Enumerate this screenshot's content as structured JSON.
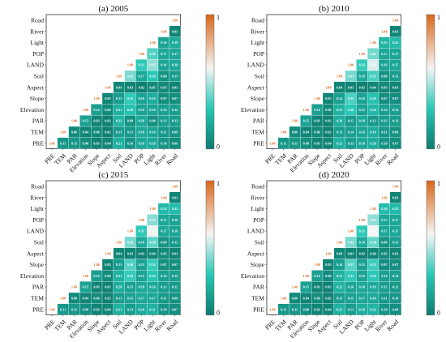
{
  "variables": [
    "PRE",
    "TEM",
    "PAR",
    "Elevation",
    "Slope",
    "Aspect",
    "Soil",
    "LAND",
    "POP",
    "Light",
    "River",
    "Road"
  ],
  "colorbar": {
    "max_label": "1",
    "min_label": "0"
  },
  "colors": {
    "low": "#0d7c6f",
    "mid": "#28c7b6",
    "pale": "#f5f5f5",
    "high": "#d9681a"
  },
  "chart_data": [
    {
      "type": "heatmap",
      "title": "(a) 2005",
      "diag_label": "1.00",
      "ylim": [
        0,
        1
      ],
      "values": [
        [],
        [
          0.11
        ],
        [
          0.11,
          0.06
        ],
        [
          0.08,
          0.04,
          0.15
        ],
        [
          0.03,
          0.06,
          0.03,
          0.14
        ],
        [
          0.04,
          0.02,
          0.02,
          0.06,
          0.03
        ],
        [
          0.21,
          0.13,
          0.22,
          0.21,
          0.13,
          0.04
        ],
        [
          0.1,
          0.11,
          0.09,
          0.28,
          0.31,
          0.03,
          0.42
        ],
        [
          0.18,
          0.18,
          0.18,
          0.16,
          0.16,
          0.02,
          0.17,
          0.31
        ],
        [
          0.18,
          0.16,
          0.08,
          0.16,
          0.19,
          0.05,
          0.3,
          0.45,
          0.36
        ],
        [
          0.1,
          0.11,
          0.13,
          0.14,
          0.07,
          0.05,
          0.09,
          0.16,
          0.17,
          0.16
        ],
        [
          0.06,
          0.09,
          0.13,
          0.14,
          0.07,
          0.03,
          0.13,
          0.18,
          0.17,
          0.19,
          0.03
        ]
      ]
    },
    {
      "type": "heatmap",
      "title": "(b) 2010",
      "diag_label": "1.00",
      "ylim": [
        0,
        1
      ],
      "values": [
        [],
        [
          0.11
        ],
        [
          0.11,
          0.06
        ],
        [
          0.08,
          0.04,
          0.15
        ],
        [
          0.03,
          0.06,
          0.03,
          0.14
        ],
        [
          0.04,
          0.02,
          0.02,
          0.06,
          0.03
        ],
        [
          0.21,
          0.13,
          0.2,
          0.21,
          0.14,
          0.04
        ],
        [
          0.13,
          0.14,
          0.12,
          0.3,
          0.35,
          0.03,
          0.41
        ],
        [
          0.18,
          0.16,
          0.18,
          0.15,
          0.16,
          0.02,
          0.18,
          0.32
        ],
        [
          0.2,
          0.19,
          0.12,
          0.24,
          0.28,
          0.04,
          0.35,
          0.56,
          0.41
        ],
        [
          0.1,
          0.11,
          0.13,
          0.14,
          0.07,
          0.05,
          0.09,
          0.16,
          0.17,
          0.23
        ],
        [
          0.07,
          0.09,
          0.13,
          0.14,
          0.07,
          0.03,
          0.13,
          0.17,
          0.17,
          0.25,
          0.03
        ]
      ]
    },
    {
      "type": "heatmap",
      "title": "(c) 2015",
      "diag_label": "1.00",
      "ylim": [
        0,
        1
      ],
      "values": [
        [],
        [
          0.11
        ],
        [
          0.11,
          0.06
        ],
        [
          0.08,
          0.04,
          0.15
        ],
        [
          0.03,
          0.06,
          0.03,
          0.14
        ],
        [
          0.04,
          0.02,
          0.02,
          0.06,
          0.03
        ],
        [
          0.21,
          0.13,
          0.2,
          0.21,
          0.13,
          0.04
        ],
        [
          0.13,
          0.15,
          0.15,
          0.32,
          0.36,
          0.03,
          0.42
        ],
        [
          0.19,
          0.17,
          0.18,
          0.15,
          0.15,
          0.02,
          0.18,
          0.31
        ],
        [
          0.21,
          0.17,
          0.18,
          0.29,
          0.32,
          0.04,
          0.38,
          0.59,
          0.44
        ],
        [
          0.1,
          0.11,
          0.13,
          0.14,
          0.07,
          0.05,
          0.09,
          0.17,
          0.17,
          0.25
        ],
        [
          0.07,
          0.09,
          0.12,
          0.14,
          0.07,
          0.03,
          0.12,
          0.16,
          0.16,
          0.25,
          0.03
        ]
      ]
    },
    {
      "type": "heatmap",
      "title": "(d) 2020",
      "diag_label": "1.00",
      "ylim": [
        0,
        1
      ],
      "values": [
        [],
        [
          0.11
        ],
        [
          0.11,
          0.06
        ],
        [
          0.08,
          0.04,
          0.15
        ],
        [
          0.03,
          0.06,
          0.03,
          0.14
        ],
        [
          0.04,
          0.02,
          0.02,
          0.06,
          0.03
        ],
        [
          0.21,
          0.13,
          0.22,
          0.21,
          0.14,
          0.04
        ],
        [
          0.13,
          0.15,
          0.16,
          0.31,
          0.37,
          0.03,
          0.42
        ],
        [
          0.2,
          0.17,
          0.18,
          0.16,
          0.15,
          0.02,
          0.18,
          0.31
        ],
        [
          0.22,
          0.18,
          0.18,
          0.3,
          0.33,
          0.04,
          0.39,
          0.6,
          0.45
        ],
        [
          0.1,
          0.11,
          0.13,
          0.14,
          0.07,
          0.05,
          0.09,
          0.17,
          0.17,
          0.26
        ],
        [
          0.08,
          0.1,
          0.12,
          0.14,
          0.07,
          0.03,
          0.13,
          0.17,
          0.17,
          0.25,
          0.03
        ]
      ]
    }
  ]
}
